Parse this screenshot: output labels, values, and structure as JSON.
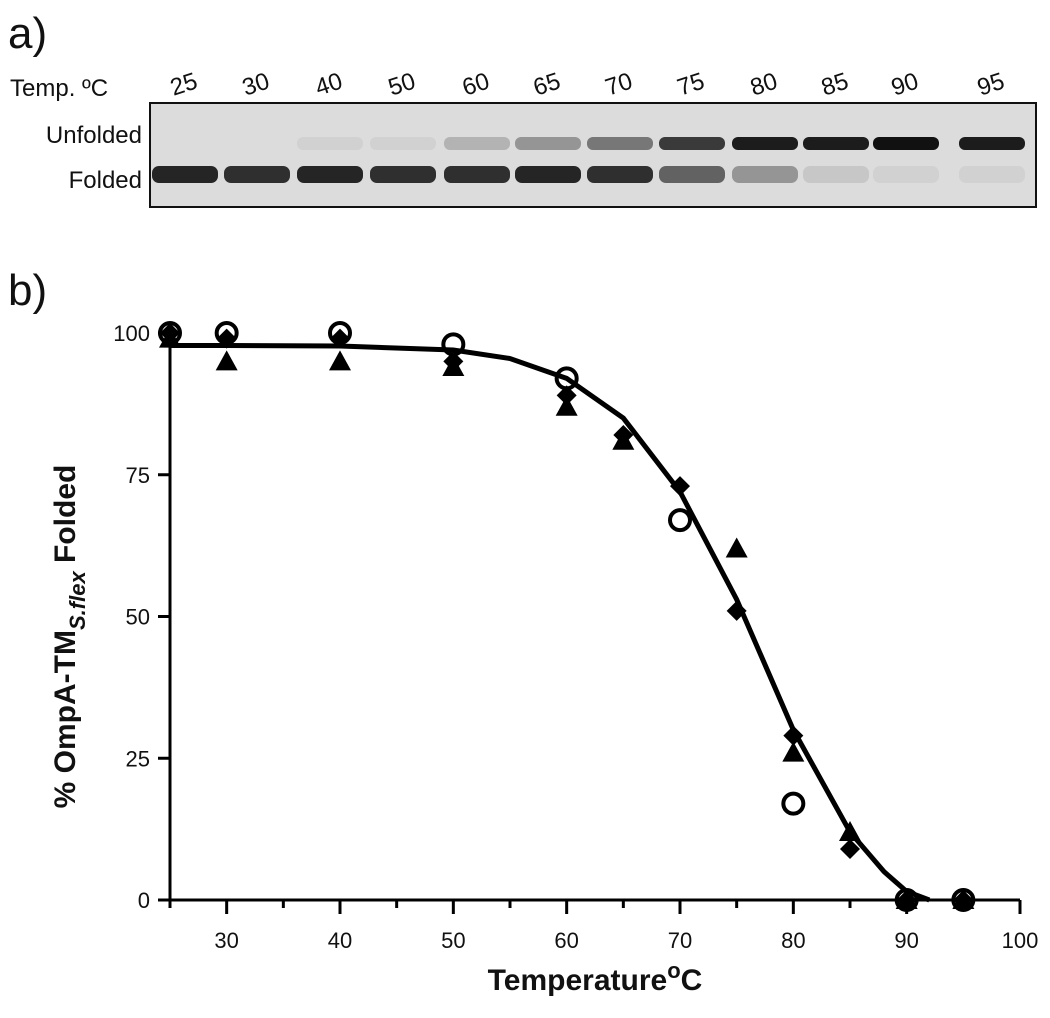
{
  "panel_a": {
    "label": "a)",
    "row_label": "Temp. ºC",
    "temps": [
      "25",
      "30",
      "40",
      "50",
      "60",
      "65",
      "70",
      "75",
      "80",
      "85",
      "90",
      "95"
    ],
    "bands": [
      "Unfolded",
      "Folded"
    ],
    "unfolded_intensity": [
      0,
      0,
      0.05,
      0.05,
      0.2,
      0.35,
      0.5,
      0.8,
      0.95,
      0.95,
      1,
      0.95
    ],
    "folded_intensity": [
      0.9,
      0.85,
      0.9,
      0.85,
      0.85,
      0.9,
      0.85,
      0.6,
      0.35,
      0.1,
      0.05,
      0.05
    ]
  },
  "chart_data": {
    "type": "scatter",
    "label": "b)",
    "xlabel": {
      "text": "Temperature",
      "sup": "o",
      "after": "C"
    },
    "ylabel": {
      "text": "% OmpA-TM",
      "sub": "S.flex",
      "after": " Folded"
    },
    "xlim": [
      25,
      100
    ],
    "xticks": [
      30,
      40,
      50,
      60,
      70,
      80,
      90,
      100
    ],
    "x_minor_ticks": [
      25,
      35,
      45,
      55,
      65,
      75,
      85,
      95
    ],
    "ylim": [
      0,
      100
    ],
    "yticks": [
      0,
      25,
      50,
      75,
      100
    ],
    "series": [
      {
        "marker": "circle-open",
        "color": "#000000",
        "x": [
          25,
          30,
          40,
          50,
          60,
          70,
          80,
          90,
          95
        ],
        "values": [
          100,
          100,
          100,
          98,
          92,
          67,
          17,
          0,
          0
        ]
      },
      {
        "marker": "triangle",
        "color": "#000000",
        "x": [
          25,
          30,
          40,
          50,
          60,
          65,
          75,
          80,
          85,
          90,
          95
        ],
        "values": [
          99,
          95,
          95,
          94,
          87,
          81,
          62,
          26,
          12,
          0,
          0
        ]
      },
      {
        "marker": "diamond",
        "color": "#000000",
        "x": [
          25,
          30,
          40,
          50,
          60,
          65,
          70,
          75,
          80,
          85,
          90,
          95
        ],
        "values": [
          100,
          99,
          99,
          95,
          89,
          82,
          73,
          51,
          29,
          9,
          0,
          0
        ]
      },
      {
        "marker": "line",
        "color": "#000000",
        "x": [
          25,
          30,
          40,
          50,
          55,
          60,
          65,
          70,
          75,
          80,
          85,
          88,
          90,
          92
        ],
        "values": [
          97.8,
          97.8,
          97.7,
          97,
          95.5,
          92,
          85,
          72,
          53,
          30,
          12,
          5,
          1.5,
          0
        ]
      }
    ]
  }
}
